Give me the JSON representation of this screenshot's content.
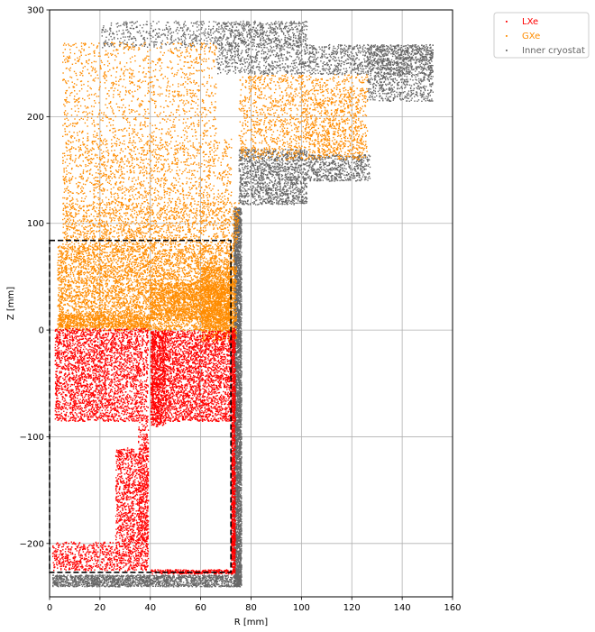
{
  "chart_data": {
    "type": "scatter",
    "xlabel": "R [mm]",
    "ylabel": "Z [mm]",
    "xlim": [
      0,
      160
    ],
    "ylim": [
      -250,
      300
    ],
    "xticks": [
      0,
      20,
      40,
      60,
      80,
      100,
      120,
      140,
      160
    ],
    "yticks": [
      -200,
      -100,
      0,
      100,
      200,
      300
    ],
    "grid": true,
    "legend_position": "outside-top-right",
    "colors": {
      "lxe": "#ff0000",
      "gxe": "#ff8c00",
      "cryostat": "#666666",
      "box": "#000000"
    },
    "series": [
      {
        "name": "LXe",
        "color": "#ff0000",
        "regions": [
          {
            "x": [
              2,
              35
            ],
            "z": [
              -85,
              2
            ],
            "density": 1.6
          },
          {
            "x": [
              35,
              39
            ],
            "z": [
              -200,
              2
            ],
            "density": 1.3
          },
          {
            "x": [
              26,
              39
            ],
            "z": [
              -225,
              -110
            ],
            "density": 1.5
          },
          {
            "x": [
              1,
              26
            ],
            "z": [
              -225,
              -198
            ],
            "density": 1.3
          },
          {
            "x": [
              40,
              72
            ],
            "z": [
              -85,
              0
            ],
            "density": 1.9
          },
          {
            "x": [
              40,
              46
            ],
            "z": [
              -90,
              0
            ],
            "density": 2.0
          },
          {
            "x": [
              72,
              73.5
            ],
            "z": [
              -228,
              2
            ],
            "density": 6.0
          },
          {
            "x": [
              40,
              73
            ],
            "z": [
              -228,
              -224
            ],
            "density": 4.0
          }
        ]
      },
      {
        "name": "GXe",
        "color": "#ff8c00",
        "regions": [
          {
            "x": [
              3,
              73
            ],
            "z": [
              0,
              80
            ],
            "density": 1.5
          },
          {
            "x": [
              40,
              72
            ],
            "z": [
              10,
              45
            ],
            "density": 2.0
          },
          {
            "x": [
              60,
              74
            ],
            "z": [
              -10,
              60
            ],
            "density": 2.2
          },
          {
            "x": [
              3,
              40
            ],
            "z": [
              3,
              15
            ],
            "density": 2.2
          },
          {
            "x": [
              5,
              75
            ],
            "z": [
              80,
              120
            ],
            "density": 0.9
          },
          {
            "x": [
              5,
              72
            ],
            "z": [
              120,
              180
            ],
            "density": 0.55
          },
          {
            "x": [
              5,
              66
            ],
            "z": [
              180,
              270
            ],
            "density": 0.35
          },
          {
            "x": [
              75,
              126
            ],
            "z": [
              160,
              240
            ],
            "density": 0.6
          },
          {
            "x": [
              100,
              124
            ],
            "z": [
              165,
              228
            ],
            "density": 0.4
          }
        ]
      },
      {
        "name": "Inner cryostat",
        "color": "#666666",
        "regions": [
          {
            "x": [
              73,
              76
            ],
            "z": [
              -240,
              115
            ],
            "density": 6.0
          },
          {
            "x": [
              1,
              76
            ],
            "z": [
              -240,
              -229
            ],
            "density": 3.5
          },
          {
            "x": [
              75,
              102
            ],
            "z": [
              118,
              170
            ],
            "density": 1.6
          },
          {
            "x": [
              102,
              127
            ],
            "z": [
              140,
              165
            ],
            "density": 1.5
          },
          {
            "x": [
              20,
              102
            ],
            "z": [
              265,
              290
            ],
            "density": 0.55
          },
          {
            "x": [
              66,
              102
            ],
            "z": [
              240,
              290
            ],
            "density": 0.8
          },
          {
            "x": [
              102,
              152
            ],
            "z": [
              240,
              268
            ],
            "density": 1.0
          },
          {
            "x": [
              126,
              152
            ],
            "z": [
              215,
              268
            ],
            "density": 1.1
          }
        ]
      }
    ],
    "annotations": [
      {
        "type": "dashed-box",
        "x": [
          0,
          72
        ],
        "z": [
          -227,
          84
        ],
        "color": "#000000"
      }
    ]
  }
}
